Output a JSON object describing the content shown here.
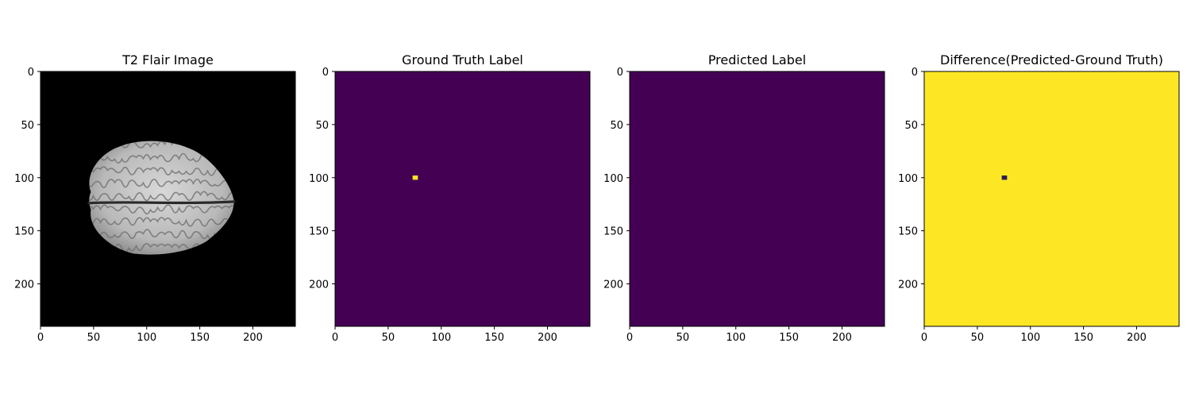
{
  "figure": {
    "background": "#ffffff"
  },
  "chart_data": [
    {
      "type": "heatmap",
      "title": "T2 Flair Image",
      "colormap": "gray",
      "background_color": "#000000",
      "xlim": [
        0,
        240
      ],
      "ylim": [
        240,
        0
      ],
      "y_inverted": true,
      "xticks": [
        0,
        50,
        100,
        150,
        200
      ],
      "yticks": [
        0,
        50,
        100,
        150,
        200
      ],
      "content": {
        "kind": "brain-axial-slice",
        "left_edge_x": 43,
        "right_edge_x": 182,
        "top_edge_y": 65,
        "bottom_edge_y": 173,
        "midline_y": 124
      }
    },
    {
      "type": "heatmap",
      "title": "Ground Truth Label",
      "colormap": "viridis",
      "background_color": "#440154",
      "xlim": [
        0,
        240
      ],
      "ylim": [
        240,
        0
      ],
      "y_inverted": true,
      "xticks": [
        0,
        50,
        100,
        150,
        200
      ],
      "yticks": [
        0,
        50,
        100,
        150,
        200
      ],
      "region": {
        "x": 73,
        "y": 98,
        "w": 5,
        "h": 4,
        "color": "#fde725"
      }
    },
    {
      "type": "heatmap",
      "title": "Predicted Label",
      "colormap": "viridis",
      "background_color": "#440154",
      "xlim": [
        0,
        240
      ],
      "ylim": [
        240,
        0
      ],
      "y_inverted": true,
      "xticks": [
        0,
        50,
        100,
        150,
        200
      ],
      "yticks": [
        0,
        50,
        100,
        150,
        200
      ]
    },
    {
      "type": "heatmap",
      "title": "Difference(Predicted-Ground Truth)",
      "colormap": "viridis",
      "background_color": "#fde725",
      "xlim": [
        0,
        240
      ],
      "ylim": [
        240,
        0
      ],
      "y_inverted": true,
      "xticks": [
        0,
        50,
        100,
        150,
        200
      ],
      "yticks": [
        0,
        50,
        100,
        150,
        200
      ],
      "region": {
        "x": 73,
        "y": 98,
        "w": 5,
        "h": 4,
        "color": "#2b1a55"
      }
    }
  ]
}
